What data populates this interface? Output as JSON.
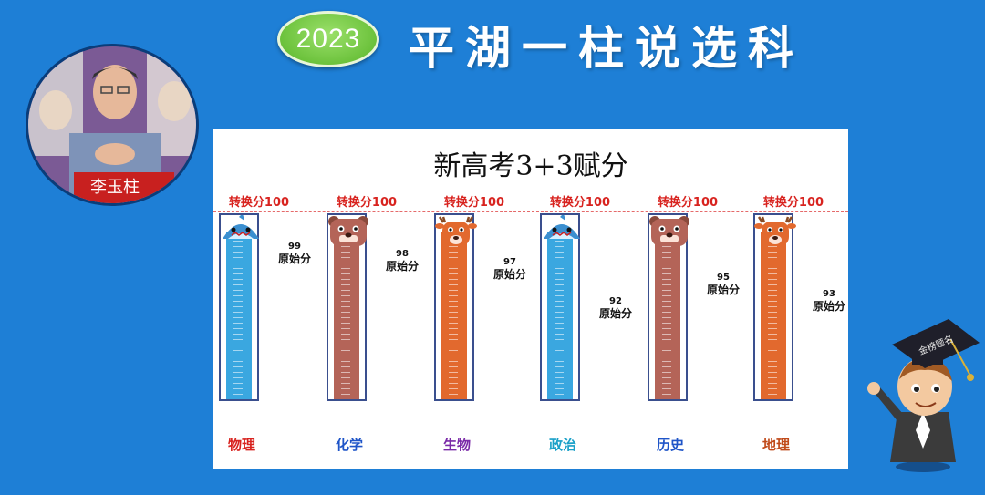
{
  "header": {
    "year": "2023",
    "title": "平湖一柱说选科"
  },
  "avatar": {
    "nameplate": "李玉柱"
  },
  "chart_title": "新高考3+3赋分",
  "converted_label": "转换分100",
  "raw_label": "原始分",
  "chart_data": {
    "type": "bar",
    "title": "新高考3+3赋分",
    "categories": [
      "物理",
      "化学",
      "生物",
      "政治",
      "历史",
      "地理"
    ],
    "series": [
      {
        "name": "转换分",
        "values": [
          100,
          100,
          100,
          100,
          100,
          100
        ]
      },
      {
        "name": "原始分",
        "values": [
          99,
          98,
          97,
          92,
          95,
          93
        ]
      }
    ],
    "ylim": [
      0,
      100
    ]
  },
  "subjects": [
    {
      "name": "物理",
      "converted": "转换分100",
      "raw": "99",
      "color": "#d8231f",
      "liquid": "#3aa7e0",
      "mascot": "shark"
    },
    {
      "name": "化学",
      "converted": "转换分100",
      "raw": "98",
      "color": "#1f55c8",
      "liquid": "#b46458",
      "mascot": "bear"
    },
    {
      "name": "生物",
      "converted": "转换分100",
      "raw": "97",
      "color": "#7a2aa8",
      "liquid": "#e2692e",
      "mascot": "deer"
    },
    {
      "name": "政治",
      "converted": "转换分100",
      "raw": "92",
      "color": "#1aa0c8",
      "liquid": "#3aa7e0",
      "mascot": "shark"
    },
    {
      "name": "历史",
      "converted": "转换分100",
      "raw": "95",
      "color": "#1f55c8",
      "liquid": "#b46458",
      "mascot": "bear"
    },
    {
      "name": "地理",
      "converted": "转换分100",
      "raw": "93",
      "color": "#c04a1a",
      "liquid": "#e2692e",
      "mascot": "deer"
    }
  ],
  "mascot_boy": {
    "cap_text": "金榜题名"
  }
}
